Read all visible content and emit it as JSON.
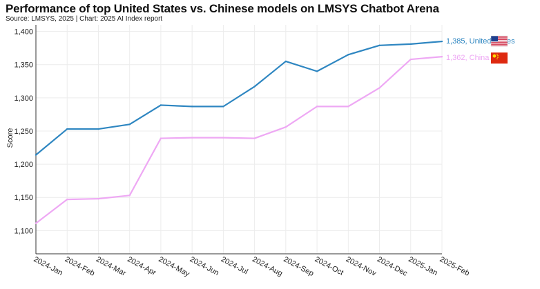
{
  "title": "Performance of top United States vs. Chinese models on LMSYS Chatbot Arena",
  "source": "Source: LMSYS, 2025 | Chart: 2025 AI Index report",
  "chart_data": {
    "type": "line",
    "title": "Performance of top United States vs. Chinese models on LMSYS Chatbot Arena",
    "xlabel": "",
    "ylabel": "Score",
    "ylim": [
      1065,
      1410
    ],
    "yticks": [
      1100,
      1150,
      1200,
      1250,
      1300,
      1350,
      1400
    ],
    "ytick_labels": [
      "1,100",
      "1,150",
      "1,200",
      "1,250",
      "1,300",
      "1,350",
      "1,400"
    ],
    "grid": "horizontal and vertical",
    "categories": [
      "2024-Jan",
      "2024-Feb",
      "2024-Mar",
      "2024-Apr",
      "2024-May",
      "2024-Jun",
      "2024-Jul",
      "2024-Aug",
      "2024-Sep",
      "2024-Oct",
      "2024-Nov",
      "2024-Dec",
      "2025-Jan",
      "2025-Feb"
    ],
    "series": [
      {
        "name": "United States",
        "color": "#2e86c1",
        "end_label": "1,385, United States",
        "flag": "us-flag-icon",
        "values": [
          1214,
          1253,
          1253,
          1260,
          1289,
          1287,
          1287,
          1317,
          1355,
          1340,
          1365,
          1379,
          1381,
          1385
        ]
      },
      {
        "name": "China",
        "color": "#eea8f4",
        "end_label": "1,362, China",
        "flag": "china-flag-icon",
        "values": [
          1111,
          1147,
          1148,
          1153,
          1239,
          1240,
          1240,
          1239,
          1256,
          1287,
          1287,
          1315,
          1358,
          1362
        ]
      }
    ]
  }
}
